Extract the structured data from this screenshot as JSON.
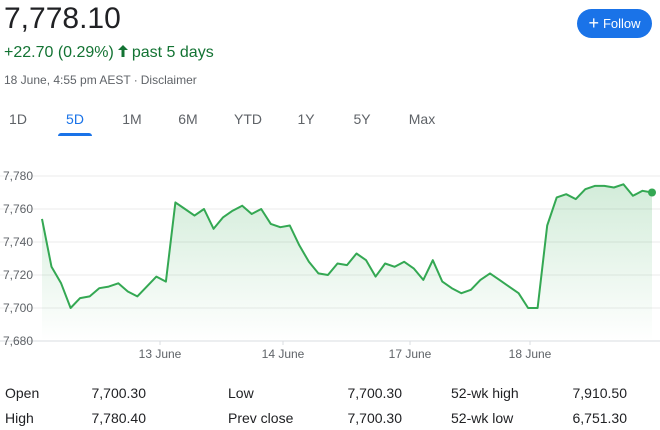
{
  "quote": {
    "price": "7,778.10",
    "change": "+22.70 (0.29%)",
    "period": "past 5 days",
    "timestamp": "18 June, 4:55 pm AEST",
    "separator": "·",
    "disclaimer": "Disclaimer"
  },
  "follow_button": {
    "label": "Follow",
    "color": "#1a73e8"
  },
  "tabs": [
    {
      "label": "1D",
      "active": false
    },
    {
      "label": "5D",
      "active": true
    },
    {
      "label": "1M",
      "active": false
    },
    {
      "label": "6M",
      "active": false
    },
    {
      "label": "YTD",
      "active": false
    },
    {
      "label": "1Y",
      "active": false
    },
    {
      "label": "5Y",
      "active": false
    },
    {
      "label": "Max",
      "active": false
    }
  ],
  "chart_data": {
    "type": "area",
    "y_ticks": [
      "7,780",
      "7,760",
      "7,740",
      "7,720",
      "7,700",
      "7,680"
    ],
    "ylim": [
      7680,
      7780
    ],
    "x_ticks": [
      "13 June",
      "14 June",
      "17 June",
      "18 June"
    ],
    "line_color": "#34a853",
    "grid": true,
    "series": [
      {
        "values": [
          7754,
          7725,
          7715,
          7700,
          7706,
          7707,
          7712,
          7713,
          7715,
          7710,
          7707,
          7713,
          7719,
          7716,
          7764,
          7760,
          7756,
          7760,
          7748,
          7755,
          7759,
          7762,
          7757,
          7760,
          7751,
          7749,
          7750,
          7738,
          7728,
          7721,
          7720,
          7727,
          7726,
          7733,
          7729,
          7719,
          7727,
          7725,
          7728,
          7724,
          7717,
          7729,
          7716,
          7712,
          7709,
          7711,
          7717,
          7721,
          7717,
          7713,
          7709,
          7700,
          7700,
          7750,
          7767,
          7769,
          7766,
          7772,
          7774,
          7774,
          7773,
          7775,
          7768,
          7771,
          7770
        ]
      }
    ]
  },
  "stats": {
    "open_label": "Open",
    "open_value": "7,700.30",
    "high_label": "High",
    "high_value": "7,780.40",
    "low_label": "Low",
    "low_value": "7,700.30",
    "prev_close_label": "Prev close",
    "prev_close_value": "7,700.30",
    "wk52_high_label": "52-wk high",
    "wk52_high_value": "7,910.50",
    "wk52_low_label": "52-wk low",
    "wk52_low_value": "6,751.30"
  }
}
